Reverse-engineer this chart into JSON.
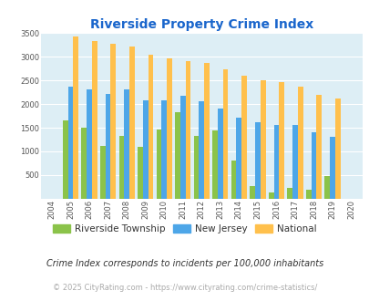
{
  "title": "Riverside Property Crime Index",
  "years": [
    2004,
    2005,
    2006,
    2007,
    2008,
    2009,
    2010,
    2011,
    2012,
    2013,
    2014,
    2015,
    2016,
    2017,
    2018,
    2019,
    2020
  ],
  "riverside": [
    0,
    1650,
    1500,
    1120,
    1320,
    1100,
    1470,
    1820,
    1330,
    1450,
    800,
    270,
    140,
    220,
    190,
    470,
    0
  ],
  "new_jersey": [
    0,
    2360,
    2310,
    2210,
    2310,
    2080,
    2080,
    2170,
    2060,
    1900,
    1720,
    1610,
    1560,
    1560,
    1400,
    1310,
    0
  ],
  "national": [
    0,
    3420,
    3340,
    3270,
    3210,
    3050,
    2960,
    2910,
    2860,
    2730,
    2600,
    2500,
    2470,
    2360,
    2200,
    2110,
    0
  ],
  "riverside_color": "#8bc34a",
  "new_jersey_color": "#4da6e8",
  "national_color": "#ffc04c",
  "bg_color": "#ddeef5",
  "ylim": [
    0,
    3500
  ],
  "yticks": [
    0,
    500,
    1000,
    1500,
    2000,
    2500,
    3000,
    3500
  ],
  "legend_labels": [
    "Riverside Township",
    "New Jersey",
    "National"
  ],
  "footnote1": "Crime Index corresponds to incidents per 100,000 inhabitants",
  "footnote2": "© 2025 CityRating.com - https://www.cityrating.com/crime-statistics/",
  "title_color": "#1a66cc",
  "footnote1_color": "#333333",
  "footnote2_color": "#aaaaaa",
  "footnote2_url_color": "#4da6e8"
}
